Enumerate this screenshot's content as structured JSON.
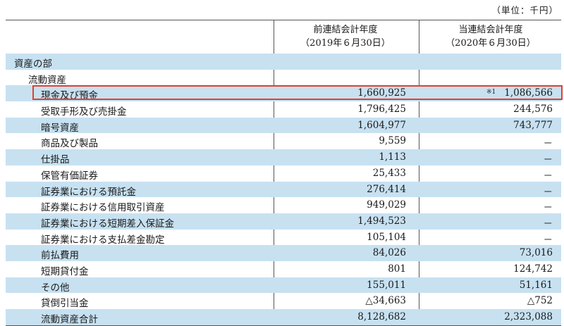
{
  "unit_note": "（単位：千円）",
  "columns": {
    "prev": {
      "line1": "前連結会計年度",
      "line2": "（2019年６月30日）"
    },
    "curr": {
      "line1": "当連結会計年度",
      "line2": "（2020年６月30日）"
    }
  },
  "rows": [
    {
      "label": "資産の部",
      "level": 0,
      "prev": "",
      "curr": "",
      "note": ""
    },
    {
      "label": "流動資産",
      "level": 1,
      "prev": "",
      "curr": "",
      "note": ""
    },
    {
      "label": "現金及び預金",
      "level": 2,
      "prev": "1,660,925",
      "curr": "1,086,566",
      "note": "※1",
      "highlighted": true
    },
    {
      "label": "受取手形及び売掛金",
      "level": 2,
      "prev": "1,796,425",
      "curr": "244,576",
      "note": ""
    },
    {
      "label": "暗号資産",
      "level": 2,
      "prev": "1,604,977",
      "curr": "743,777",
      "note": ""
    },
    {
      "label": "商品及び製品",
      "level": 2,
      "prev": "9,559",
      "curr": "－",
      "note": ""
    },
    {
      "label": "仕掛品",
      "level": 2,
      "prev": "1,113",
      "curr": "－",
      "note": ""
    },
    {
      "label": "保管有価証券",
      "level": 2,
      "prev": "25,433",
      "curr": "－",
      "note": ""
    },
    {
      "label": "証券業における預託金",
      "level": 2,
      "prev": "276,414",
      "curr": "－",
      "note": ""
    },
    {
      "label": "証券業における信用取引資産",
      "level": 2,
      "prev": "949,029",
      "curr": "－",
      "note": ""
    },
    {
      "label": "証券業における短期差入保証金",
      "level": 2,
      "prev": "1,494,523",
      "curr": "－",
      "note": ""
    },
    {
      "label": "証券業における支払差金勘定",
      "level": 2,
      "prev": "105,104",
      "curr": "－",
      "note": ""
    },
    {
      "label": "前払費用",
      "level": 2,
      "prev": "84,026",
      "curr": "73,016",
      "note": ""
    },
    {
      "label": "短期貸付金",
      "level": 2,
      "prev": "801",
      "curr": "124,742",
      "note": ""
    },
    {
      "label": "その他",
      "level": 2,
      "prev": "155,011",
      "curr": "51,161",
      "note": ""
    },
    {
      "label": "貸倒引当金",
      "level": 2,
      "prev": "△34,663",
      "curr": "△752",
      "note": ""
    },
    {
      "label": "流動資産合計",
      "level": 2,
      "prev": "8,128,682",
      "curr": "2,323,088",
      "note": ""
    }
  ],
  "colors": {
    "shade": "#c7e1f1",
    "highlight_border": "#e2402c"
  }
}
